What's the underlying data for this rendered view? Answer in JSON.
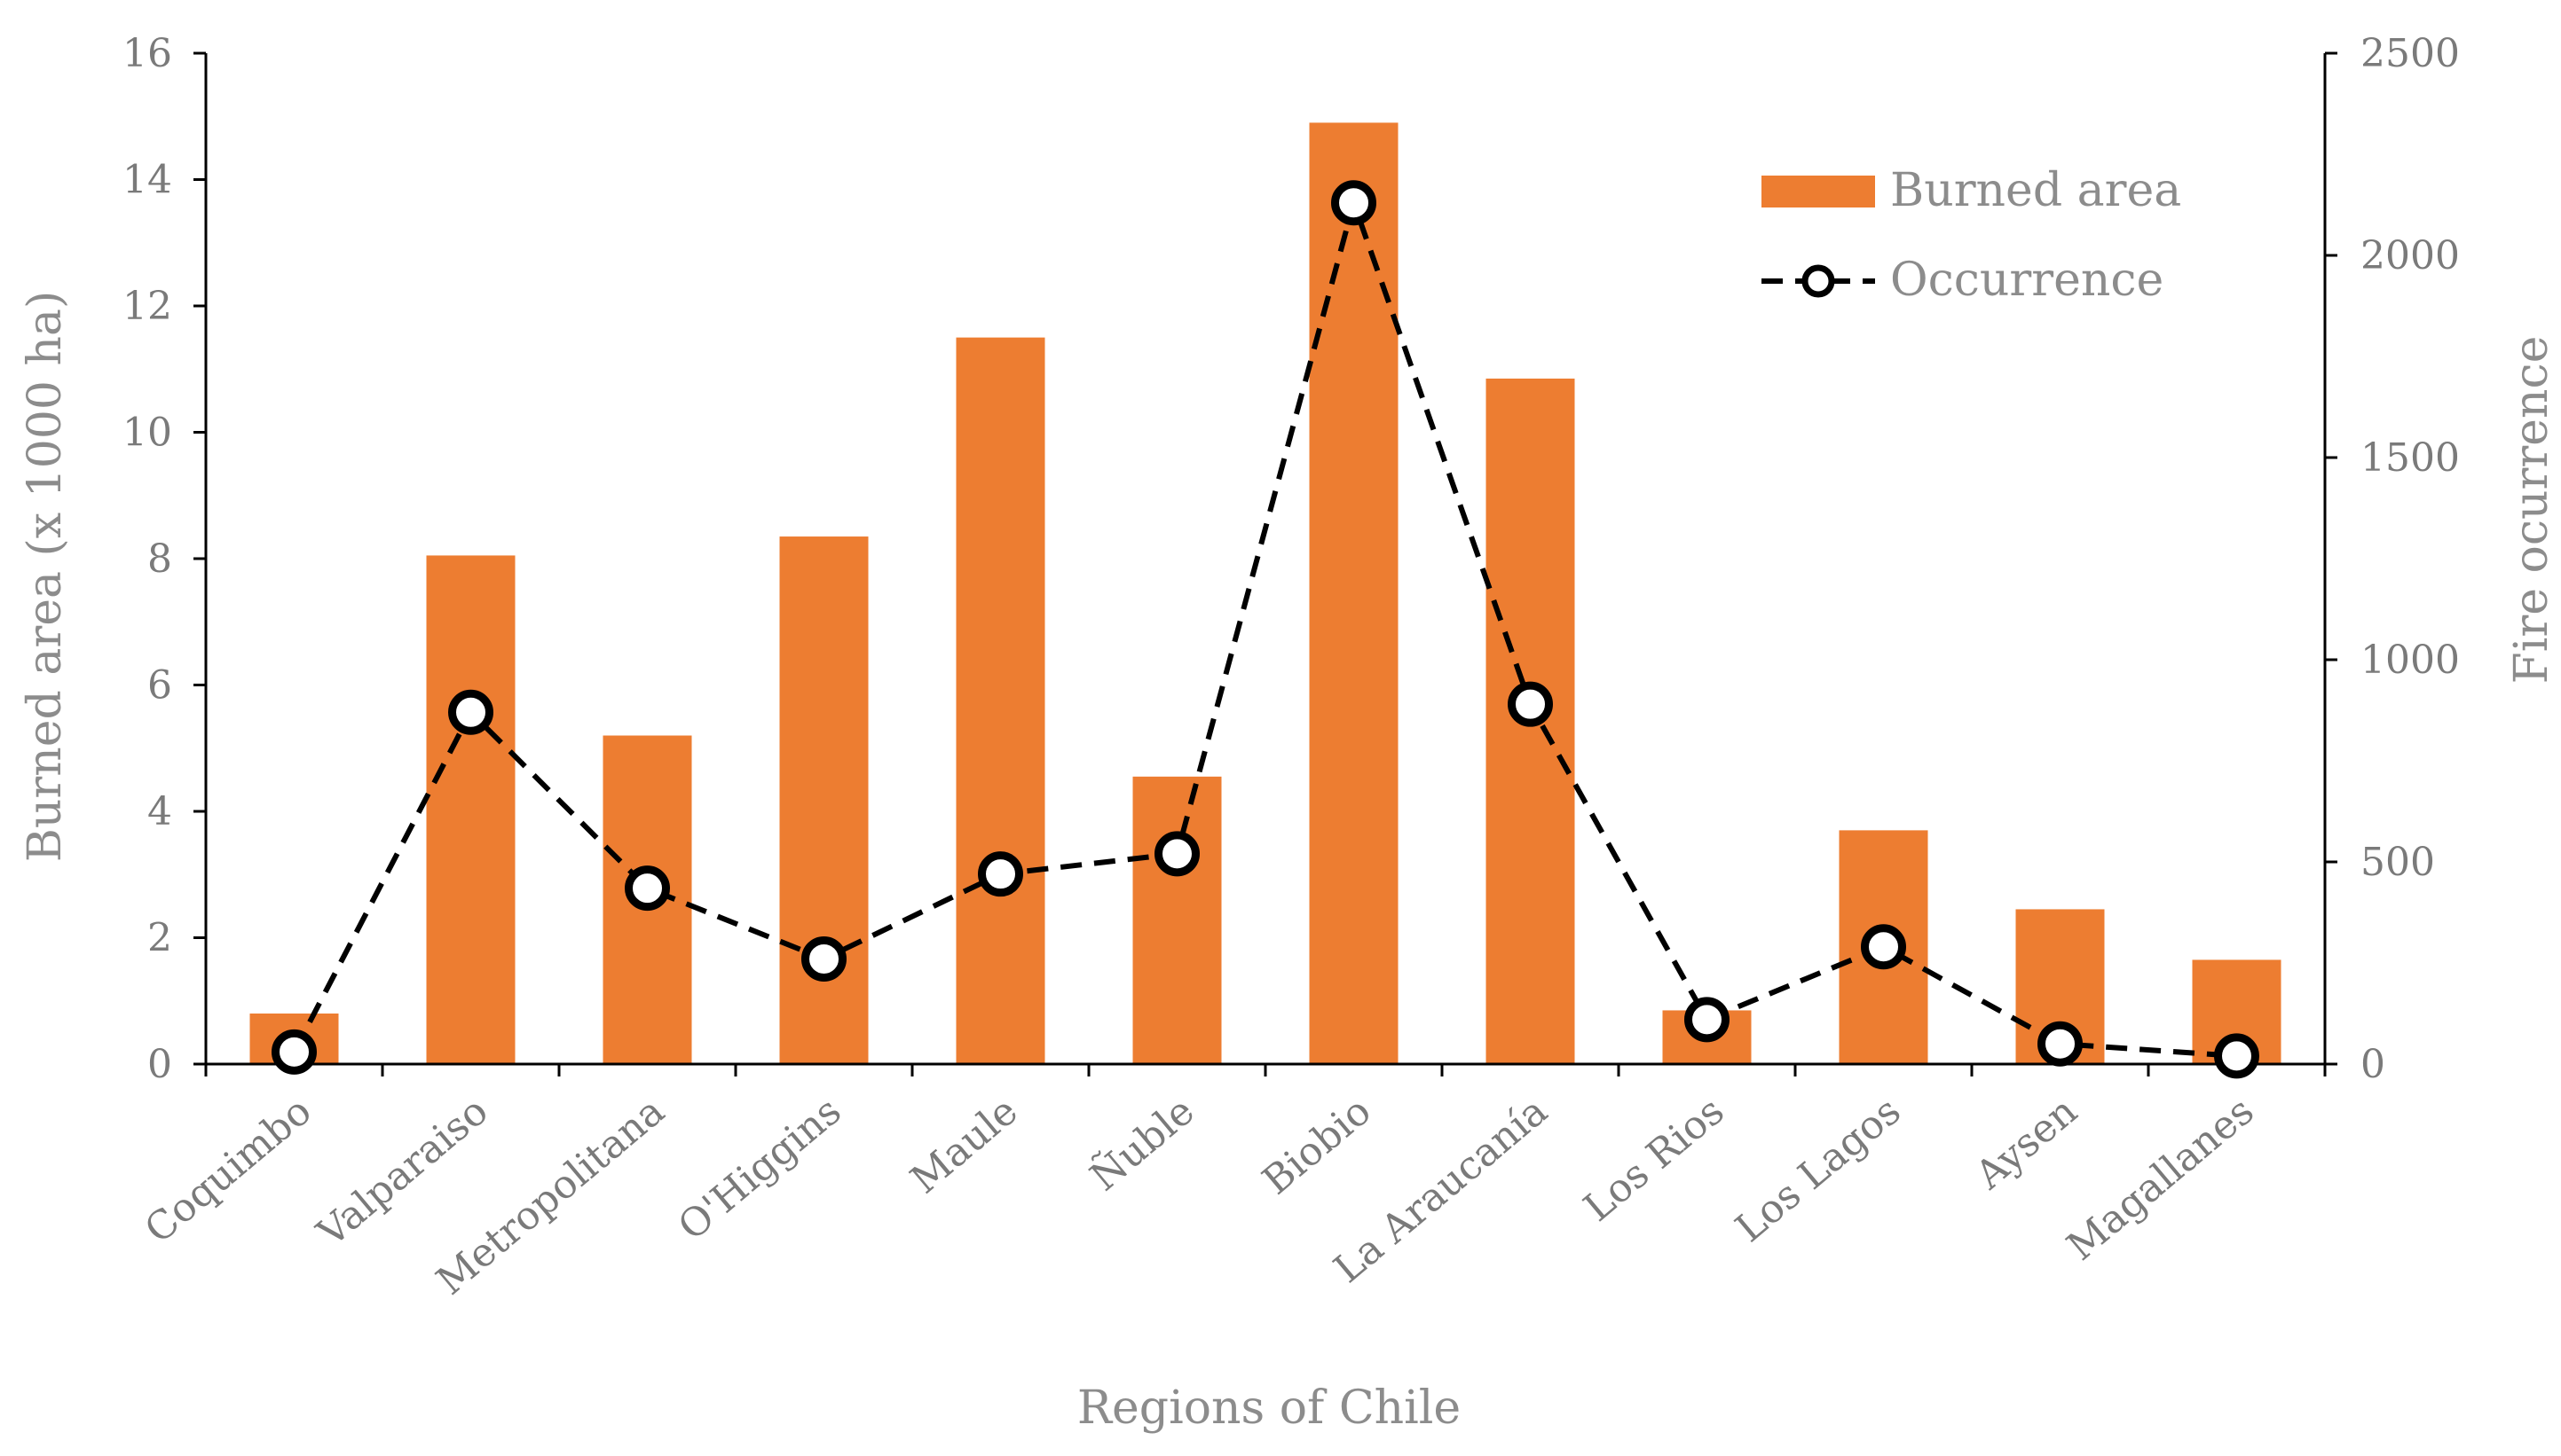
{
  "chart_data": {
    "type": "bar",
    "title": "",
    "xlabel": "Regions of Chile",
    "ylabel": "Burned area (x 1000 ha)",
    "y2label": "Fire ocurrence",
    "categories": [
      "Coquimbo",
      "Valparaiso",
      "Metropolitana",
      "O'Higgins",
      "Maule",
      "Ñuble",
      "Biobio",
      "La Araucanía",
      "Los Rios",
      "Los Lagos",
      "Aysen",
      "Magallanes"
    ],
    "ylim": [
      0,
      16
    ],
    "yticks": [
      "0",
      "2",
      "4",
      "6",
      "8",
      "10",
      "12",
      "14",
      "16"
    ],
    "y2lim": [
      0,
      2500
    ],
    "y2ticks": [
      "0",
      "500",
      "1000",
      "1500",
      "2000",
      "2500"
    ],
    "legend_position": "top-right",
    "series": [
      {
        "name": "Burned area",
        "type": "bar",
        "axis": "left",
        "color": "#ed7d31",
        "values": [
          0.8,
          8.05,
          5.2,
          8.35,
          11.5,
          4.55,
          14.9,
          10.85,
          0.85,
          3.7,
          2.45,
          1.65
        ]
      },
      {
        "name": "Occurrence",
        "type": "line",
        "axis": "right",
        "color": "#000000",
        "values": [
          30,
          870,
          435,
          260,
          470,
          520,
          2130,
          890,
          110,
          290,
          50,
          20
        ]
      }
    ]
  }
}
